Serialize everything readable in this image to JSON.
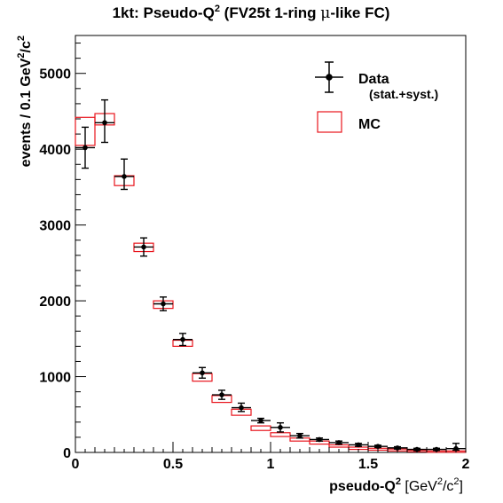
{
  "chart_data": {
    "type": "histogram",
    "title": "1kt: Pseudo-Q",
    "title_sup": "2",
    "title_suffix_a": " (FV25t 1-ring ",
    "title_mu": "μ",
    "title_suffix_b": "-like FC)",
    "xlabel": "pseudo-Q",
    "xlabel_sup": "2",
    "xlabel_units_a": " [GeV",
    "xlabel_units_sup1": "2",
    "xlabel_units_b": "/c",
    "xlabel_units_sup2": "2",
    "xlabel_units_c": "]",
    "ylabel": "events / 0.1 GeV",
    "ylabel_sup1": "2",
    "ylabel_mid": "/c",
    "ylabel_sup2": "2",
    "xlim": [
      0,
      2
    ],
    "ylim": [
      0,
      5500
    ],
    "xticks": [
      0,
      0.5,
      1,
      1.5,
      2
    ],
    "xtick_labels": [
      "0",
      "0.5",
      "1",
      "1.5",
      "2"
    ],
    "yticks": [
      0,
      1000,
      2000,
      3000,
      4000,
      5000
    ],
    "ytick_labels": [
      "0",
      "1000",
      "2000",
      "3000",
      "4000",
      "5000"
    ],
    "legend_position": "top-right",
    "colors": {
      "data": "#000000",
      "mc": "#e8141c"
    },
    "series": [
      {
        "name": "Data",
        "legend_sub": "(stat.+syst.)",
        "kind": "points-with-errors",
        "x": [
          0.05,
          0.15,
          0.25,
          0.35,
          0.45,
          0.55,
          0.65,
          0.75,
          0.85,
          0.95,
          1.05,
          1.15,
          1.25,
          1.35,
          1.45,
          1.55,
          1.65,
          1.75,
          1.85,
          1.95
        ],
        "x_err": 0.05,
        "y": [
          4020,
          4350,
          3640,
          2710,
          1960,
          1490,
          1050,
          760,
          590,
          420,
          330,
          220,
          170,
          130,
          100,
          80,
          60,
          40,
          40,
          50
        ],
        "y_err_low": [
          270,
          260,
          170,
          120,
          90,
          80,
          70,
          60,
          50,
          30,
          60,
          30,
          20,
          20,
          20,
          15,
          15,
          15,
          15,
          20
        ],
        "y_err_high": [
          270,
          300,
          230,
          120,
          90,
          80,
          70,
          60,
          60,
          30,
          60,
          30,
          20,
          20,
          20,
          15,
          15,
          15,
          15,
          70
        ]
      },
      {
        "name": "MC",
        "kind": "boxes",
        "x": [
          0.05,
          0.15,
          0.25,
          0.35,
          0.45,
          0.55,
          0.65,
          0.75,
          0.85,
          0.95,
          1.05,
          1.15,
          1.25,
          1.35,
          1.45,
          1.55,
          1.65,
          1.75,
          1.85,
          1.95
        ],
        "y_low": [
          4050,
          4320,
          3520,
          2650,
          1900,
          1400,
          940,
          660,
          490,
          290,
          210,
          150,
          110,
          70,
          40,
          30,
          20,
          10,
          10,
          10
        ],
        "y_high": [
          4420,
          4470,
          3650,
          2760,
          2000,
          1480,
          1040,
          750,
          570,
          350,
          260,
          190,
          150,
          100,
          70,
          55,
          45,
          30,
          20,
          20
        ]
      }
    ]
  }
}
